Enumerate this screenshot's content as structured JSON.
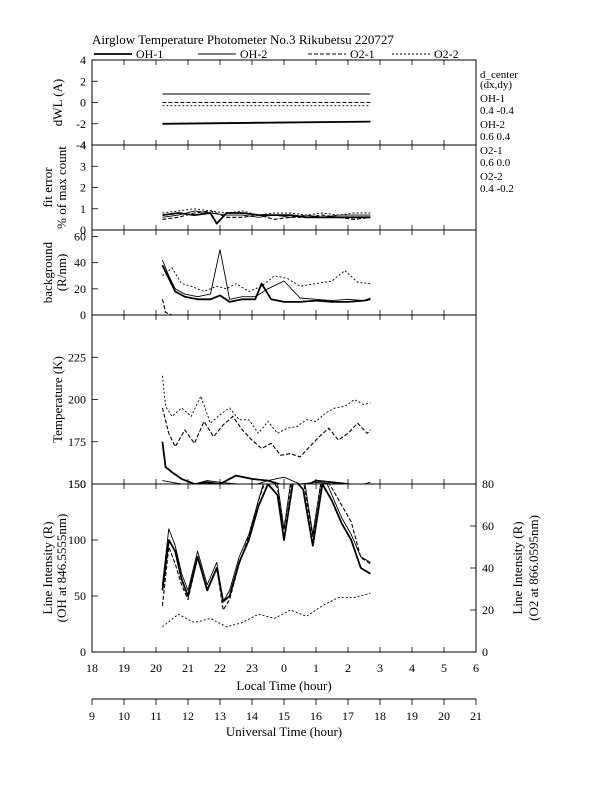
{
  "title": "Airglow Temperature Photometer No.3  Rikubetsu    220727",
  "legend": [
    {
      "name": "OH-1",
      "style": "solid-thick"
    },
    {
      "name": "OH-2",
      "style": "solid-thin"
    },
    {
      "name": "O2-1",
      "style": "dashed"
    },
    {
      "name": "O2-2",
      "style": "dotted"
    }
  ],
  "side_info": {
    "header": [
      "d_center",
      "(dx,dy)"
    ],
    "entries": [
      {
        "name": "OH-1",
        "values": "0.4   -0.4"
      },
      {
        "name": "OH-2",
        "values": "0.6   0.4"
      },
      {
        "name": "O2-1",
        "values": "0.6   0.0"
      },
      {
        "name": "O2-2",
        "values": "0.4   -0.2"
      }
    ]
  },
  "x_axis_local": {
    "label": "Local Time (hour)",
    "ticks": [
      "18",
      "19",
      "20",
      "21",
      "22",
      "23",
      "0",
      "1",
      "2",
      "3",
      "4",
      "5",
      "6"
    ]
  },
  "x_axis_ut": {
    "label": "Universal Time (hour)",
    "ticks": [
      "9",
      "10",
      "11",
      "12",
      "13",
      "14",
      "15",
      "16",
      "17",
      "18",
      "19",
      "20",
      "21"
    ]
  },
  "chart_data": [
    {
      "type": "line",
      "ylabel": "dWL (A)",
      "ylim": [
        -4,
        4
      ],
      "yticks": [
        "4",
        "2",
        "0",
        "-2",
        "-4"
      ],
      "x_units": "local time hours since 18:00",
      "series": [
        {
          "name": "OH-1",
          "x": [
            2.2,
            8.7
          ],
          "y": [
            -2.0,
            -1.8
          ]
        },
        {
          "name": "OH-2",
          "x": [
            2.2,
            8.7
          ],
          "y": [
            0.8,
            0.8
          ]
        },
        {
          "name": "O2-1",
          "x": [
            2.2,
            8.7
          ],
          "y": [
            0.0,
            0.0
          ]
        },
        {
          "name": "O2-2",
          "x": [
            2.2,
            8.7
          ],
          "y": [
            -0.3,
            -0.3
          ]
        }
      ]
    },
    {
      "type": "line",
      "ylabel": "fit error",
      "ylabel2": "% of max count",
      "ylim": [
        0,
        4
      ],
      "yticks": [
        "4",
        "3",
        "2",
        "1",
        "0"
      ],
      "series": [
        {
          "name": "OH-1",
          "x": [
            2.2,
            2.7,
            3.2,
            3.7,
            3.9,
            4.2,
            4.7,
            5.2,
            5.7,
            6.2,
            6.7,
            7.2,
            7.7,
            8.2,
            8.7
          ],
          "y": [
            0.7,
            0.8,
            0.7,
            0.8,
            0.3,
            0.8,
            0.8,
            0.7,
            0.7,
            0.7,
            0.6,
            0.6,
            0.6,
            0.6,
            0.6
          ]
        },
        {
          "name": "OH-2",
          "x": [
            2.2,
            2.7,
            3.2,
            3.7,
            4.2,
            4.7,
            5.2,
            5.7,
            6.2,
            6.7,
            7.2,
            7.7,
            8.2,
            8.7
          ],
          "y": [
            0.6,
            0.7,
            0.9,
            0.8,
            0.7,
            0.7,
            0.6,
            0.7,
            0.6,
            0.7,
            0.6,
            0.7,
            0.7,
            0.7
          ]
        },
        {
          "name": "O2-1",
          "x": [
            2.2,
            2.7,
            3.2,
            3.7,
            4.2,
            4.7,
            5.2,
            5.7,
            6.2,
            6.7,
            7.2,
            7.7,
            8.2,
            8.7
          ],
          "y": [
            0.5,
            0.6,
            0.8,
            0.9,
            0.6,
            0.6,
            0.7,
            0.5,
            0.6,
            0.6,
            0.7,
            0.6,
            0.5,
            0.6
          ]
        },
        {
          "name": "O2-2",
          "x": [
            2.2,
            2.7,
            3.2,
            3.7,
            4.2,
            4.7,
            5.2,
            5.7,
            6.2,
            6.7,
            7.2,
            7.7,
            8.2,
            8.7
          ],
          "y": [
            0.8,
            0.9,
            1.0,
            0.9,
            0.8,
            0.9,
            0.7,
            0.8,
            0.8,
            0.7,
            0.8,
            0.7,
            0.8,
            0.8
          ]
        }
      ]
    },
    {
      "type": "line",
      "ylabel": "background",
      "ylabel2": "(R/nm)",
      "ylim": [
        0,
        65
      ],
      "yticks": [
        "60",
        "40",
        "20",
        "0"
      ],
      "series": [
        {
          "name": "OH-1",
          "x": [
            2.2,
            2.4,
            2.6,
            2.9,
            3.3,
            3.7,
            4.0,
            4.3,
            4.7,
            5.1,
            5.3,
            5.6,
            6.0,
            6.5,
            7.0,
            7.5,
            8.0,
            8.5,
            8.7
          ],
          "y": [
            38,
            28,
            18,
            14,
            12,
            12,
            15,
            10,
            12,
            12,
            24,
            12,
            10,
            10,
            11,
            10,
            10,
            11,
            12
          ]
        },
        {
          "name": "OH-2",
          "x": [
            2.2,
            2.4,
            2.6,
            2.9,
            3.3,
            3.7,
            4.0,
            4.3,
            4.7,
            5.1,
            5.5,
            6.0,
            6.5,
            7.0,
            7.5,
            8.0,
            8.5,
            8.7
          ],
          "y": [
            42,
            30,
            20,
            16,
            14,
            16,
            50,
            12,
            14,
            14,
            20,
            26,
            13,
            12,
            11,
            12,
            11,
            13
          ]
        },
        {
          "name": "O2-1",
          "x": [
            2.2,
            2.3,
            2.5,
            2.8,
            3.2,
            3.6,
            4.0,
            4.4,
            4.8,
            5.2,
            5.6,
            6.0,
            6.5,
            7.0,
            7.5,
            8.0,
            8.5,
            8.7
          ],
          "y": [
            12,
            2,
            0,
            0,
            0,
            0,
            0,
            0,
            0,
            0,
            0,
            0,
            0,
            0,
            0,
            0,
            0,
            0
          ]
        },
        {
          "name": "O2-2",
          "x": [
            2.2,
            2.5,
            2.8,
            3.1,
            3.5,
            3.9,
            4.2,
            4.5,
            4.9,
            5.3,
            5.7,
            6.1,
            6.5,
            7.0,
            7.5,
            7.9,
            8.3,
            8.7
          ],
          "y": [
            30,
            36,
            24,
            22,
            18,
            22,
            20,
            24,
            18,
            22,
            30,
            28,
            22,
            24,
            26,
            34,
            25,
            24
          ]
        }
      ]
    },
    {
      "type": "line",
      "ylabel": "Temperature (K)",
      "ylim": [
        150,
        250
      ],
      "yticks": [
        "225",
        "200",
        "175",
        "150"
      ],
      "series": [
        {
          "name": "OH-1",
          "x": [
            2.2,
            2.3,
            2.5,
            2.8,
            3.2,
            3.6,
            4.0,
            4.5,
            5.0,
            5.5,
            6.0,
            6.5,
            7.0,
            7.5,
            8.0,
            8.5,
            8.7
          ],
          "y": [
            175,
            160,
            157,
            153,
            150,
            151,
            150,
            155,
            153,
            152,
            149,
            147,
            152,
            151,
            150,
            147,
            148
          ]
        },
        {
          "name": "OH-2",
          "x": [
            2.2,
            2.5,
            2.8,
            3.2,
            3.6,
            4.0,
            4.5,
            5.0,
            5.5,
            6.0,
            6.5,
            7.0,
            7.5,
            8.0,
            8.5,
            8.7
          ],
          "y": [
            152,
            151,
            150,
            150,
            152,
            151,
            150,
            149,
            152,
            154,
            150,
            151,
            150,
            149,
            150,
            151
          ]
        },
        {
          "name": "O2-1",
          "x": [
            2.2,
            2.4,
            2.6,
            2.9,
            3.2,
            3.5,
            3.8,
            4.1,
            4.4,
            4.7,
            5.0,
            5.3,
            5.6,
            5.9,
            6.2,
            6.5,
            6.8,
            7.1,
            7.4,
            7.7,
            8.0,
            8.3,
            8.6,
            8.7
          ],
          "y": [
            195,
            180,
            172,
            182,
            174,
            187,
            178,
            185,
            190,
            182,
            176,
            171,
            174,
            167,
            168,
            166,
            172,
            178,
            183,
            176,
            180,
            186,
            180,
            182
          ]
        },
        {
          "name": "O2-2",
          "x": [
            2.2,
            2.3,
            2.5,
            2.8,
            3.1,
            3.4,
            3.7,
            4.0,
            4.3,
            4.6,
            4.9,
            5.2,
            5.5,
            5.8,
            6.1,
            6.4,
            6.7,
            7.0,
            7.3,
            7.6,
            7.9,
            8.2,
            8.5,
            8.7
          ],
          "y": [
            214,
            196,
            190,
            195,
            190,
            202,
            186,
            191,
            195,
            188,
            188,
            180,
            187,
            180,
            183,
            184,
            188,
            187,
            192,
            195,
            196,
            200,
            197,
            198
          ]
        }
      ]
    },
    {
      "type": "line",
      "ylabel": "Line Intensity (R)",
      "ylabel2": "(OH at 846.5555nm)",
      "y2label": "Line Intensity (R)",
      "y2label2": "(O2 at 866.0595nm)",
      "ylim": [
        0,
        150
      ],
      "yticks": [
        "150",
        "100",
        "50",
        "0"
      ],
      "y2lim": [
        0,
        80
      ],
      "y2ticks": [
        "80",
        "60",
        "40",
        "20",
        "0"
      ],
      "series": [
        {
          "name": "OH-1",
          "x": [
            2.2,
            2.4,
            2.6,
            2.8,
            3.0,
            3.3,
            3.6,
            3.9,
            4.1,
            4.3,
            4.6,
            4.9,
            5.2,
            5.5,
            5.8,
            6.0,
            6.3,
            6.6,
            6.9,
            7.2,
            7.5,
            7.8,
            8.1,
            8.4,
            8.7
          ],
          "y": [
            55,
            100,
            90,
            65,
            50,
            85,
            55,
            75,
            45,
            50,
            80,
            100,
            130,
            150,
            140,
            100,
            155,
            145,
            95,
            150,
            135,
            115,
            100,
            75,
            70
          ]
        },
        {
          "name": "OH-2",
          "x": [
            2.2,
            2.4,
            2.6,
            2.8,
            3.0,
            3.3,
            3.6,
            3.9,
            4.1,
            4.3,
            4.6,
            4.9,
            5.2,
            5.5,
            5.8,
            6.0,
            6.3,
            6.6,
            6.9,
            7.2,
            7.5,
            7.8,
            8.1,
            8.4,
            8.7
          ],
          "y": [
            60,
            110,
            95,
            70,
            55,
            90,
            60,
            80,
            45,
            55,
            85,
            105,
            135,
            165,
            150,
            110,
            170,
            160,
            105,
            160,
            140,
            120,
            105,
            85,
            80
          ]
        },
        {
          "name": "O2-1",
          "x": [
            2.2,
            2.4,
            2.6,
            2.8,
            3.0,
            3.3,
            3.6,
            3.9,
            4.1,
            4.3,
            4.6,
            4.9,
            5.2,
            5.5,
            5.8,
            6.0,
            6.3,
            6.6,
            6.9,
            7.2,
            7.5,
            7.8,
            8.1,
            8.4,
            8.7
          ],
          "y": [
            22,
            50,
            42,
            32,
            25,
            45,
            30,
            40,
            20,
            25,
            42,
            55,
            72,
            85,
            78,
            58,
            88,
            82,
            55,
            85,
            78,
            70,
            62,
            45,
            42
          ]
        },
        {
          "name": "O2-2",
          "x": [
            2.2,
            2.7,
            3.2,
            3.7,
            4.2,
            4.7,
            5.2,
            5.7,
            6.2,
            6.7,
            7.2,
            7.7,
            8.2,
            8.7
          ],
          "y": [
            12,
            18,
            14,
            16,
            12,
            14,
            18,
            16,
            20,
            17,
            22,
            26,
            26,
            28
          ]
        }
      ]
    }
  ]
}
